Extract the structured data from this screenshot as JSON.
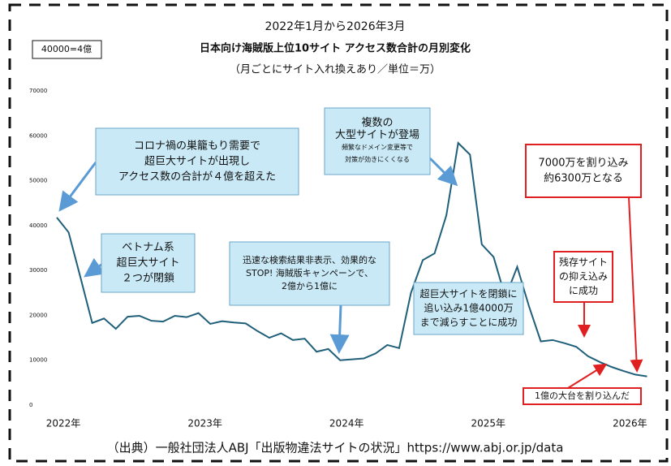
{
  "chart_data": {
    "type": "line",
    "title": [
      "2022年1月から2026年3月",
      "日本向け海賊版上位10サイト アクセス数合計の月別変化",
      "（月ごとにサイト入れ換えあり／単位＝万）"
    ],
    "note": "40000=4億",
    "source": "（出典）一般社団法人ABJ「出版物違法サイトの状況」https://www.abj.or.jp/data",
    "categories": [
      "2022年",
      null,
      null,
      null,
      null,
      null,
      null,
      null,
      null,
      null,
      null,
      null,
      "2023年",
      null,
      null,
      null,
      null,
      null,
      null,
      null,
      null,
      null,
      null,
      null,
      "2024年",
      null,
      null,
      null,
      null,
      null,
      null,
      null,
      null,
      null,
      null,
      null,
      "2025年",
      null,
      null,
      null,
      null,
      null,
      null,
      null,
      null,
      null,
      null,
      null,
      "2026年",
      null,
      null
    ],
    "series": [
      {
        "name": "アクセス数合計",
        "color": "#1f5f7a",
        "values": [
          41800,
          38500,
          28500,
          18300,
          19300,
          17000,
          19700,
          19900,
          18800,
          18600,
          19900,
          19600,
          20500,
          18100,
          18700,
          18400,
          18200,
          16500,
          15000,
          16000,
          14500,
          14800,
          11900,
          12500,
          10000,
          10200,
          10400,
          11500,
          13400,
          12700,
          25000,
          32300,
          33800,
          42300,
          58400,
          55800,
          35800,
          33000,
          24000,
          30800,
          22000,
          14200,
          14500,
          13800,
          13000,
          10900,
          9600,
          8500,
          7600,
          6800,
          6400
        ]
      }
    ],
    "ylim": [
      0,
      70000
    ],
    "yticks": [
      0,
      10000,
      20000,
      30000,
      40000,
      50000,
      60000,
      70000
    ],
    "annotations": [
      {
        "lines": [
          "コロナ禍の巣籠もり需要で",
          "超巨大サイトが出現し",
          "アクセス数の合計が４億を超えた"
        ]
      },
      {
        "lines": [
          "ベトナム系",
          "超巨大サイト",
          "２つが閉鎖"
        ]
      },
      {
        "lines": [
          "迅速な検索結果非表示、効果的な",
          "STOP! 海賊版キャンペーンで、",
          "2億から1億に"
        ]
      },
      {
        "lines": [
          "複数の",
          "大型サイトが登場",
          "頻繁なドメイン変更等で",
          "対策が効きにくくなる"
        ]
      },
      {
        "lines": [
          "超巨大サイトを閉鎖に",
          "追い込み1億4000万",
          "まで減らすことに成功"
        ]
      },
      {
        "lines": [
          "7000万を割り込み",
          "約6300万となる"
        ]
      },
      {
        "lines": [
          "残存サイト",
          "の抑え込み",
          "に成功"
        ]
      },
      {
        "lines": [
          "1億の大台を割り込んだ"
        ]
      }
    ]
  }
}
